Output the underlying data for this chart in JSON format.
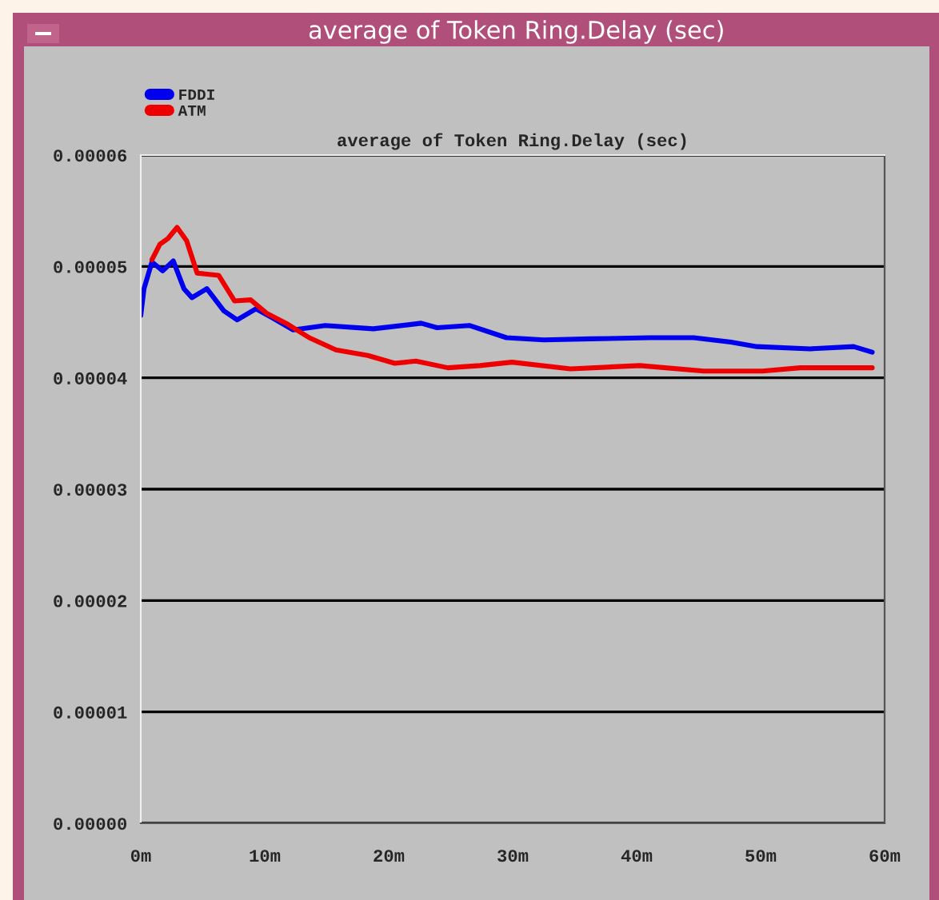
{
  "chart_data": {
    "type": "line",
    "title": "average of Token Ring.Delay (sec)",
    "subtitle": "average of Token Ring.Delay (sec)",
    "series": [
      {
        "name": "FDDI",
        "color": "#0000ee",
        "x": [
          0.0,
          0.26,
          0.9,
          1.77,
          2.62,
          3.48,
          4.13,
          5.33,
          6.71,
          7.78,
          9.29,
          10.58,
          12.3,
          14.88,
          18.75,
          22.62,
          23.9,
          26.5,
          29.5,
          32.5,
          36.4,
          41.1,
          44.6,
          47.6,
          49.7,
          54.0,
          57.5,
          59.0
        ],
        "values": [
          4.56e-05,
          4.8e-05,
          5.04e-05,
          4.96e-05,
          5.05e-05,
          4.8e-05,
          4.72e-05,
          4.8e-05,
          4.6e-05,
          4.52e-05,
          4.62e-05,
          4.54e-05,
          4.43e-05,
          4.47e-05,
          4.44e-05,
          4.49e-05,
          4.45e-05,
          4.47e-05,
          4.36e-05,
          4.34e-05,
          4.35e-05,
          4.36e-05,
          4.36e-05,
          4.32e-05,
          4.28e-05,
          4.26e-05,
          4.28e-05,
          4.23e-05
        ]
      },
      {
        "name": "ATM",
        "color": "#ee0000",
        "x": [
          0.9,
          1.55,
          2.19,
          2.93,
          3.7,
          4.55,
          6.28,
          7.57,
          8.86,
          10.15,
          11.87,
          13.59,
          15.74,
          18.32,
          20.48,
          22.19,
          24.77,
          27.35,
          29.94,
          34.67,
          40.26,
          45.42,
          50.15,
          53.2,
          59.0
        ],
        "values": [
          5.06e-05,
          5.2e-05,
          5.25e-05,
          5.35e-05,
          5.23e-05,
          4.94e-05,
          4.92e-05,
          4.69e-05,
          4.7e-05,
          4.58e-05,
          4.48e-05,
          4.36e-05,
          4.25e-05,
          4.2e-05,
          4.13e-05,
          4.15e-05,
          4.09e-05,
          4.11e-05,
          4.14e-05,
          4.08e-05,
          4.11e-05,
          4.06e-05,
          4.06e-05,
          4.09e-05,
          4.09e-05
        ]
      }
    ],
    "xlim": [
      0,
      60
    ],
    "xticks": [
      {
        "value": 0,
        "label": "0m"
      },
      {
        "value": 10,
        "label": "10m"
      },
      {
        "value": 20,
        "label": "20m"
      },
      {
        "value": 30,
        "label": "30m"
      },
      {
        "value": 40,
        "label": "40m"
      },
      {
        "value": 50,
        "label": "50m"
      },
      {
        "value": 60,
        "label": "60m"
      }
    ],
    "ylim": [
      0,
      6e-05
    ],
    "yticks": [
      {
        "value": 0,
        "label": "0.00000"
      },
      {
        "value": 1e-05,
        "label": "0.00001"
      },
      {
        "value": 2e-05,
        "label": "0.00002"
      },
      {
        "value": 3e-05,
        "label": "0.00003"
      },
      {
        "value": 4e-05,
        "label": "0.00004"
      },
      {
        "value": 5e-05,
        "label": "0.00005"
      },
      {
        "value": 6e-05,
        "label": "0.00006"
      }
    ],
    "grid": "y",
    "legend": "top left",
    "line_style": "solid",
    "marker": "none"
  }
}
